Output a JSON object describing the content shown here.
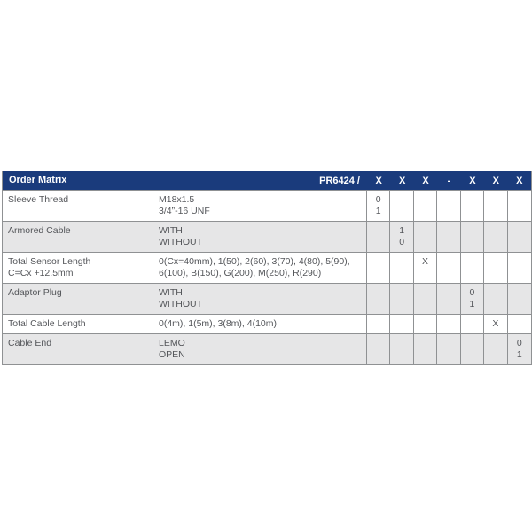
{
  "table": {
    "title": "Order Matrix",
    "product_code": "PR6424 /",
    "code_columns": [
      "X",
      "X",
      "X",
      "-",
      "X",
      "X",
      "X"
    ],
    "rows": [
      {
        "label_lines": [
          "Sleeve Thread"
        ],
        "option_lines": [
          "M18x1.5",
          "3/4”-16 UNF"
        ],
        "code_cells": [
          [
            "0",
            "1"
          ],
          [],
          [],
          [],
          [],
          [],
          []
        ],
        "shaded": false
      },
      {
        "label_lines": [
          "Armored Cable"
        ],
        "option_lines": [
          "WITH",
          "WITHOUT"
        ],
        "code_cells": [
          [],
          [
            "1",
            "0"
          ],
          [],
          [],
          [],
          [],
          []
        ],
        "shaded": true
      },
      {
        "label_lines": [
          "Total Sensor Length",
          "C=Cx +12.5mm"
        ],
        "option_lines": [
          "0(Cx=40mm), 1(50), 2(60), 3(70), 4(80), 5(90),",
          "6(100), B(150), G(200), M(250), R(290)"
        ],
        "code_cells": [
          [],
          [],
          [
            "X"
          ],
          [],
          [],
          [],
          []
        ],
        "shaded": false
      },
      {
        "label_lines": [
          "Adaptor Plug"
        ],
        "option_lines": [
          "WITH",
          "WITHOUT"
        ],
        "code_cells": [
          [],
          [],
          [],
          [],
          [
            "0",
            "1"
          ],
          [],
          []
        ],
        "shaded": true
      },
      {
        "label_lines": [
          "Total Cable Length"
        ],
        "option_lines": [
          "0(4m), 1(5m), 3(8m), 4(10m)"
        ],
        "code_cells": [
          [],
          [],
          [],
          [],
          [],
          [
            "X"
          ],
          []
        ],
        "shaded": false
      },
      {
        "label_lines": [
          "Cable End"
        ],
        "option_lines": [
          "LEMO",
          "OPEN"
        ],
        "code_cells": [
          [],
          [],
          [],
          [],
          [],
          [],
          [
            "0",
            "1"
          ]
        ],
        "shaded": true
      }
    ]
  },
  "colors": {
    "header_background": "#1a3b7c",
    "header_text": "#ffffff",
    "header_divider": "#8ea9d4",
    "shaded_row_background": "#e6e6e7",
    "grid_border": "#8f9193",
    "body_text": "#54565a"
  }
}
